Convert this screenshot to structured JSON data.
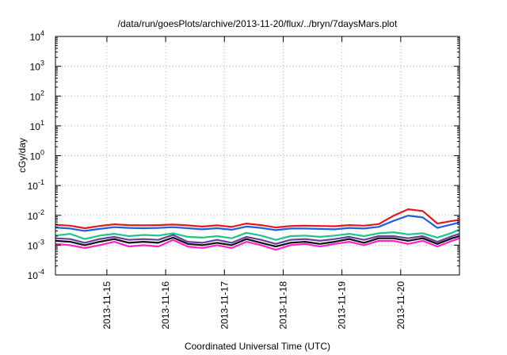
{
  "chart_data": {
    "type": "line",
    "title": "/data/run/goesPlots/archive/2013-11-20/flux/../bryn/7daysMars.plot",
    "xlabel": "Coordinated Universal Time (UTC)",
    "ylabel": "cGy/day",
    "yscale": "log",
    "ylim": [
      0.0001,
      10000
    ],
    "xlim": [
      "2013-11-14T03:00",
      "2013-11-21T00:00"
    ],
    "grid": true,
    "y_ticks": [
      {
        "base": "10",
        "exp": "-4",
        "value": 0.0001
      },
      {
        "base": "10",
        "exp": "-3",
        "value": 0.001
      },
      {
        "base": "10",
        "exp": "-2",
        "value": 0.01
      },
      {
        "base": "10",
        "exp": "-1",
        "value": 0.1
      },
      {
        "base": "10",
        "exp": "0",
        "value": 1
      },
      {
        "base": "10",
        "exp": "1",
        "value": 10
      },
      {
        "base": "10",
        "exp": "2",
        "value": 100
      },
      {
        "base": "10",
        "exp": "3",
        "value": 1000
      },
      {
        "base": "10",
        "exp": "4",
        "value": 10000
      }
    ],
    "x_ticks": [
      {
        "label": "2013-11-15",
        "value": "2013-11-15T00:00"
      },
      {
        "label": "2013-11-16",
        "value": "2013-11-16T00:00"
      },
      {
        "label": "2013-11-17",
        "value": "2013-11-17T00:00"
      },
      {
        "label": "2013-11-18",
        "value": "2013-11-18T00:00"
      },
      {
        "label": "2013-11-19",
        "value": "2013-11-19T00:00"
      },
      {
        "label": "2013-11-20",
        "value": "2013-11-20T00:00"
      }
    ],
    "x": [
      "2013-11-14T03:00",
      "2013-11-14T09:00",
      "2013-11-14T15:00",
      "2013-11-14T21:00",
      "2013-11-15T03:00",
      "2013-11-15T09:00",
      "2013-11-15T15:00",
      "2013-11-15T21:00",
      "2013-11-16T03:00",
      "2013-11-16T09:00",
      "2013-11-16T15:00",
      "2013-11-16T21:00",
      "2013-11-17T03:00",
      "2013-11-17T09:00",
      "2013-11-17T15:00",
      "2013-11-17T21:00",
      "2013-11-18T03:00",
      "2013-11-18T09:00",
      "2013-11-18T15:00",
      "2013-11-18T21:00",
      "2013-11-19T03:00",
      "2013-11-19T09:00",
      "2013-11-19T15:00",
      "2013-11-19T21:00",
      "2013-11-20T03:00",
      "2013-11-20T09:00",
      "2013-11-20T15:00",
      "2013-11-20T21:00",
      "2013-11-21T00:00"
    ],
    "series": [
      {
        "color": "#e31a1c",
        "values": [
          0.0048,
          0.0045,
          0.0037,
          0.0044,
          0.005,
          0.0047,
          0.0046,
          0.0047,
          0.0049,
          0.0046,
          0.0042,
          0.0046,
          0.0041,
          0.0053,
          0.0047,
          0.0039,
          0.0044,
          0.0045,
          0.0044,
          0.0043,
          0.0047,
          0.0045,
          0.0051,
          0.0096,
          0.016,
          0.014,
          0.0053,
          0.0065,
          0.007
        ]
      },
      {
        "color": "#1f5fe0",
        "values": [
          0.0039,
          0.0036,
          0.003,
          0.0035,
          0.004,
          0.0038,
          0.0037,
          0.0038,
          0.004,
          0.0037,
          0.0034,
          0.0037,
          0.0033,
          0.0042,
          0.0038,
          0.0032,
          0.0036,
          0.0036,
          0.0035,
          0.0034,
          0.0038,
          0.0036,
          0.0041,
          0.0065,
          0.0098,
          0.0085,
          0.0038,
          0.005,
          0.0058
        ]
      },
      {
        "color": "#1fc48a",
        "values": [
          0.0021,
          0.0024,
          0.0016,
          0.0021,
          0.0024,
          0.002,
          0.0022,
          0.0021,
          0.0025,
          0.0019,
          0.0018,
          0.002,
          0.0017,
          0.0026,
          0.0021,
          0.0015,
          0.002,
          0.0021,
          0.0019,
          0.0021,
          0.0024,
          0.002,
          0.0025,
          0.0027,
          0.0023,
          0.0025,
          0.0018,
          0.0026,
          0.0034
        ]
      },
      {
        "color": "#6a3d9a",
        "values": [
          0.0017,
          0.0016,
          0.0012,
          0.0016,
          0.0019,
          0.0015,
          0.0016,
          0.0015,
          0.0022,
          0.0013,
          0.0012,
          0.0015,
          0.0012,
          0.0019,
          0.0015,
          0.0011,
          0.0015,
          0.0016,
          0.0014,
          0.0016,
          0.0019,
          0.0015,
          0.002,
          0.002,
          0.0017,
          0.002,
          0.0013,
          0.002,
          0.0024
        ]
      },
      {
        "color": "#111111",
        "values": [
          0.0014,
          0.0013,
          0.001,
          0.0013,
          0.0016,
          0.0012,
          0.0013,
          0.0012,
          0.0018,
          0.0011,
          0.001,
          0.0012,
          0.001,
          0.0016,
          0.0012,
          0.0009,
          0.0012,
          0.0013,
          0.0011,
          0.0013,
          0.0016,
          0.0012,
          0.0017,
          0.0017,
          0.0014,
          0.0017,
          0.0011,
          0.0017,
          0.002
        ]
      },
      {
        "color": "#ff22cc",
        "values": [
          0.0011,
          0.001,
          0.0008,
          0.001,
          0.0013,
          0.0009,
          0.001,
          0.0009,
          0.0015,
          0.0009,
          0.0008,
          0.001,
          0.0008,
          0.0013,
          0.001,
          0.0007,
          0.001,
          0.0011,
          0.0009,
          0.0011,
          0.0013,
          0.001,
          0.0014,
          0.0014,
          0.0011,
          0.0014,
          0.0009,
          0.0014,
          0.0017
        ]
      }
    ]
  }
}
